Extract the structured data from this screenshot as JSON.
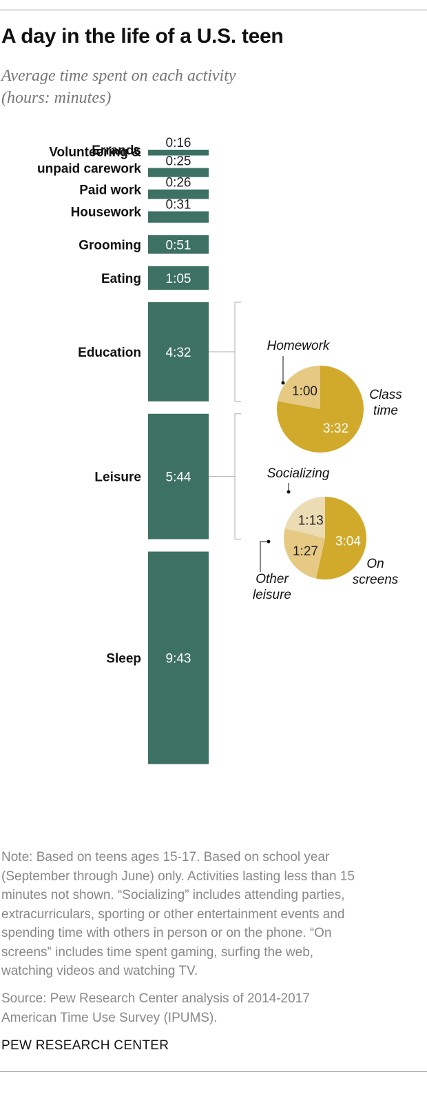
{
  "header": {
    "title": "A day in the life of a U.S. teen",
    "subtitle": "Average time spent on each activity\n(hours: minutes)"
  },
  "colors": {
    "bar": "#3d7163",
    "pie_main": "#d1a92b",
    "pie_secondary": "#e6c983",
    "pie_tertiary": "#ecdcb3",
    "bracket": "#bbbbbb"
  },
  "chart_data": [
    {
      "type": "bar",
      "orientation": "vertical-stack",
      "categories": [
        "Errands",
        "Volunteering &\nunpaid carework",
        "Paid work",
        "Housework",
        "Grooming",
        "Eating",
        "Education",
        "Leisure",
        "Sleep"
      ],
      "values": [
        0.2667,
        0.4167,
        0.4333,
        0.5167,
        0.85,
        1.0833,
        4.5333,
        5.7333,
        9.7167
      ],
      "value_labels": [
        "0:16",
        "0:25",
        "0:26",
        "0:31",
        "0:51",
        "1:05",
        "4:32",
        "5:44",
        "9:43"
      ],
      "unit": "hours"
    },
    {
      "type": "pie",
      "parent": "Education",
      "slices": [
        {
          "label": "Class\ntime",
          "value": 3.5333,
          "value_label": "3:32"
        },
        {
          "label": "Homework",
          "value": 1.0,
          "value_label": "1:00"
        }
      ]
    },
    {
      "type": "pie",
      "parent": "Leisure",
      "slices": [
        {
          "label": "On\nscreens",
          "value": 3.0667,
          "value_label": "3:04"
        },
        {
          "label": "Other\nleisure",
          "value": 1.45,
          "value_label": "1:27"
        },
        {
          "label": "Socializing",
          "value": 1.2167,
          "value_label": "1:13"
        }
      ]
    }
  ],
  "footer": {
    "note": "Note: Based on teens ages 15-17. Based on school year\n(September through June) only. Activities lasting less than 15\nminutes not shown. “Socializing” includes attending parties,\nextracurriculars, sporting or other entertainment events and\nspending time with others in person or on the phone. “On\nscreens” includes time spent gaming, surfing the web,\nwatching videos and watching TV.",
    "source": "Source: Pew Research Center analysis of 2014-2017\nAmerican Time Use Survey (IPUMS).",
    "org": "PEW RESEARCH CENTER"
  }
}
